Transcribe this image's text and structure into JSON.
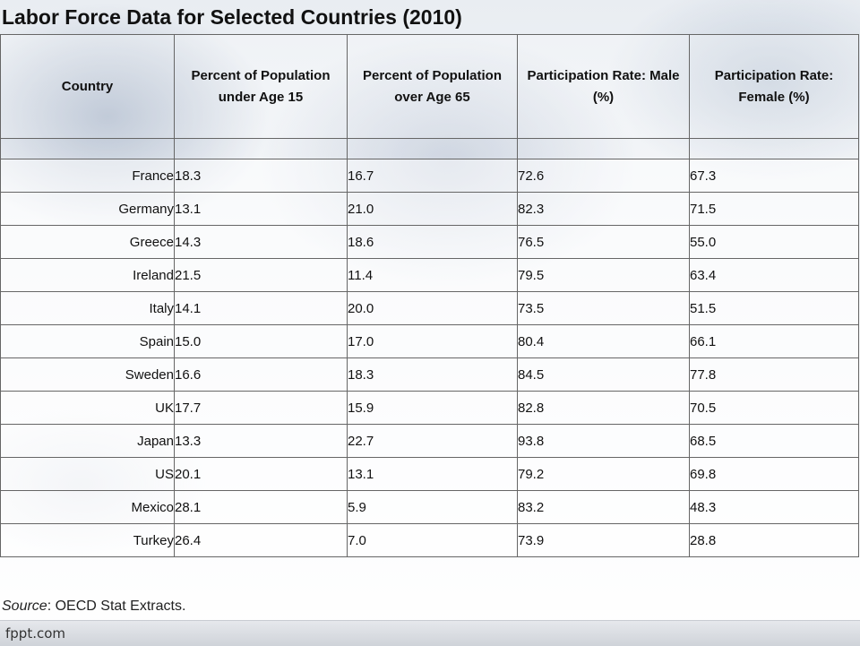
{
  "title": "Labor Force Data for Selected Countries (2010)",
  "table": {
    "headers": [
      "Country",
      "Percent of Population under Age 15",
      "Percent of Population over Age 65",
      "Participation Rate: Male (%)",
      "Participation Rate: Female (%)"
    ],
    "rows": [
      [
        "France",
        "18.3",
        "16.7",
        "72.6",
        "67.3"
      ],
      [
        "Germany",
        "13.1",
        "21.0",
        "82.3",
        "71.5"
      ],
      [
        "Greece",
        "14.3",
        "18.6",
        "76.5",
        "55.0"
      ],
      [
        "Ireland",
        "21.5",
        "11.4",
        "79.5",
        "63.4"
      ],
      [
        "Italy",
        "14.1",
        "20.0",
        "73.5",
        "51.5"
      ],
      [
        "Spain",
        "15.0",
        "17.0",
        "80.4",
        "66.1"
      ],
      [
        "Sweden",
        "16.6",
        "18.3",
        "84.5",
        "77.8"
      ],
      [
        "UK",
        "17.7",
        "15.9",
        "82.8",
        "70.5"
      ],
      [
        "Japan",
        "13.3",
        "22.7",
        "93.8",
        "68.5"
      ],
      [
        "US",
        "20.1",
        "13.1",
        "79.2",
        "69.8"
      ],
      [
        "Mexico",
        "28.1",
        "5.9",
        "83.2",
        "48.3"
      ],
      [
        "Turkey",
        "26.4",
        "7.0",
        "73.9",
        "28.8"
      ]
    ]
  },
  "source": {
    "label": "Source",
    "text": ": OECD Stat Extracts."
  },
  "footer": {
    "brand": "fppt.com"
  }
}
